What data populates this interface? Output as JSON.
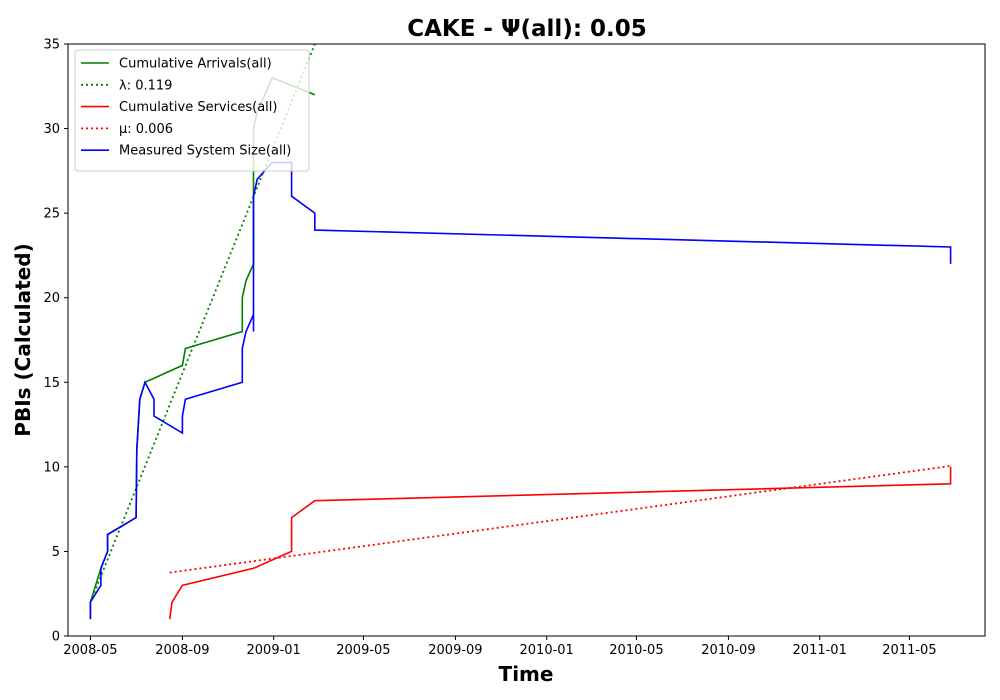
{
  "chart_data": {
    "type": "line",
    "title": "CAKE -  Ψ(all): 0.05",
    "xlabel": "Time",
    "ylabel": "PBIs (Calculated)",
    "xlim": [
      "2008-04-01",
      "2011-08-10"
    ],
    "ylim": [
      0,
      35
    ],
    "x_ticks": [
      "2008-05",
      "2008-09",
      "2009-01",
      "2009-05",
      "2009-09",
      "2010-01",
      "2010-05",
      "2010-09",
      "2011-01",
      "2011-05"
    ],
    "y_ticks": [
      0,
      5,
      10,
      15,
      20,
      25,
      30,
      35
    ],
    "grid": false,
    "legend_position": "top-left",
    "series": [
      {
        "name": "Cumulative Arrivals(all)",
        "color": "#008000",
        "style": "solid",
        "points": [
          [
            "2008-05-01",
            1
          ],
          [
            "2008-05-01",
            2
          ],
          [
            "2008-05-15",
            4
          ],
          [
            "2008-05-24",
            5
          ],
          [
            "2008-05-24",
            6
          ],
          [
            "2008-07-01",
            7
          ],
          [
            "2008-07-02",
            11
          ],
          [
            "2008-07-06",
            14
          ],
          [
            "2008-07-13",
            15
          ],
          [
            "2008-09-01",
            16
          ],
          [
            "2008-09-05",
            17
          ],
          [
            "2008-11-20",
            18
          ],
          [
            "2008-11-20",
            20
          ],
          [
            "2008-11-25",
            21
          ],
          [
            "2008-12-05",
            22
          ],
          [
            "2008-12-05",
            30
          ],
          [
            "2008-12-10",
            31
          ],
          [
            "2008-12-30",
            33
          ],
          [
            "2009-02-25",
            32
          ]
        ]
      },
      {
        "name": "λ: 0.119",
        "color": "#008000",
        "style": "dotted",
        "points": [
          [
            "2008-05-01",
            2
          ],
          [
            "2009-02-25",
            35
          ]
        ]
      },
      {
        "name": "Cumulative Services(all)",
        "color": "#ff0000",
        "style": "solid",
        "points": [
          [
            "2008-08-15",
            1
          ],
          [
            "2008-08-18",
            2
          ],
          [
            "2008-09-01",
            3
          ],
          [
            "2008-12-05",
            4
          ],
          [
            "2009-01-25",
            5
          ],
          [
            "2009-01-25",
            7
          ],
          [
            "2009-02-25",
            8
          ],
          [
            "2011-06-25",
            9
          ],
          [
            "2011-06-25",
            10
          ]
        ]
      },
      {
        "name": "μ: 0.006",
        "color": "#ff0000",
        "style": "dotted",
        "points": [
          [
            "2008-08-15",
            3.75
          ],
          [
            "2011-06-25",
            10.05
          ]
        ]
      },
      {
        "name": "Measured System Size(all)",
        "color": "#0000ff",
        "style": "solid",
        "points": [
          [
            "2008-05-01",
            1
          ],
          [
            "2008-05-01",
            2
          ],
          [
            "2008-05-08",
            2.5
          ],
          [
            "2008-05-15",
            3
          ],
          [
            "2008-05-15",
            4
          ],
          [
            "2008-05-24",
            5
          ],
          [
            "2008-05-24",
            6
          ],
          [
            "2008-07-01",
            7
          ],
          [
            "2008-07-02",
            11
          ],
          [
            "2008-07-06",
            14
          ],
          [
            "2008-07-13",
            15
          ],
          [
            "2008-07-25",
            14
          ],
          [
            "2008-07-25",
            13
          ],
          [
            "2008-09-01",
            12
          ],
          [
            "2008-09-01",
            13
          ],
          [
            "2008-09-05",
            14
          ],
          [
            "2008-11-20",
            15
          ],
          [
            "2008-11-20",
            17
          ],
          [
            "2008-11-25",
            18
          ],
          [
            "2008-12-05",
            19
          ],
          [
            "2008-12-05",
            18
          ],
          [
            "2008-12-05",
            26
          ],
          [
            "2008-12-10",
            27
          ],
          [
            "2008-12-30",
            28
          ],
          [
            "2009-01-25",
            28
          ],
          [
            "2009-01-25",
            26
          ],
          [
            "2009-02-25",
            25
          ],
          [
            "2009-02-25",
            24
          ],
          [
            "2011-06-25",
            23
          ],
          [
            "2011-06-25",
            22
          ]
        ]
      }
    ]
  }
}
